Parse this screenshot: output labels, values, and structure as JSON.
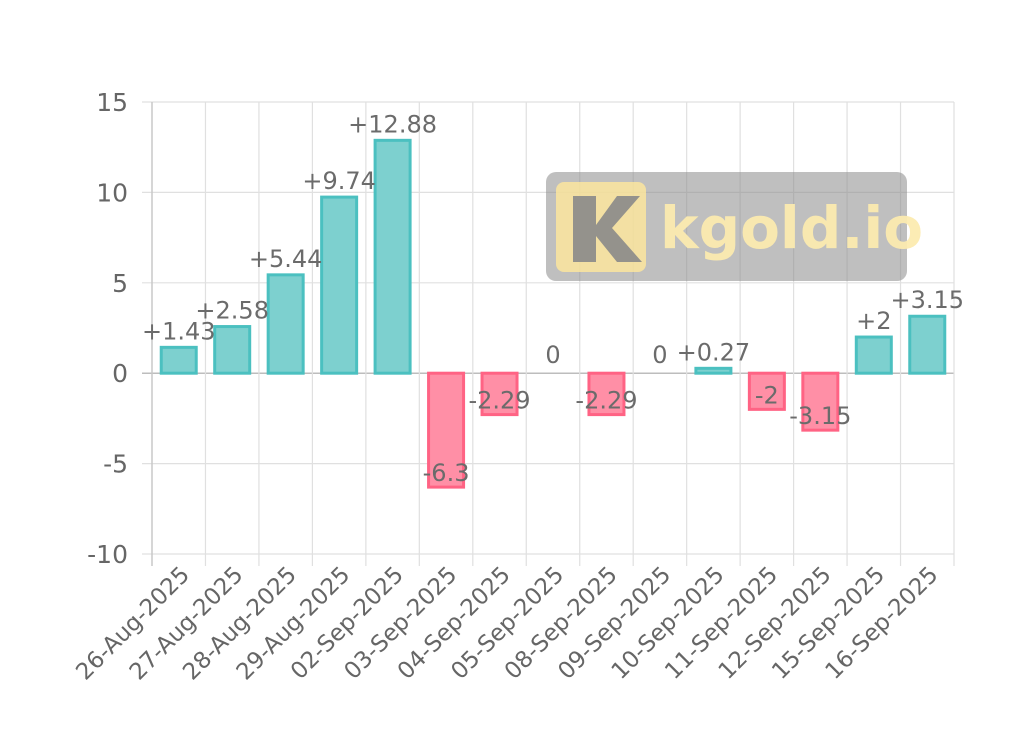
{
  "watermark": {
    "text": "kgold.io",
    "logo_letter": "K",
    "colors": {
      "box": "#8a8a8a",
      "logo": "#fbe59e"
    }
  },
  "colors": {
    "positive_fill": "#7dd0cf",
    "positive_stroke": "#4bc0c0",
    "negative_fill": "#ff8fa6",
    "negative_stroke": "#ff6384"
  },
  "chart_data": {
    "type": "bar",
    "title": "",
    "xlabel": "",
    "ylabel": "",
    "ylim": [
      -10,
      15
    ],
    "yticks": [
      -10,
      -5,
      0,
      5,
      10,
      15
    ],
    "grid": true,
    "legend": "none",
    "categories": [
      "26-Aug-2025",
      "27-Aug-2025",
      "28-Aug-2025",
      "29-Aug-2025",
      "02-Sep-2025",
      "03-Sep-2025",
      "04-Sep-2025",
      "05-Sep-2025",
      "08-Sep-2025",
      "09-Sep-2025",
      "10-Sep-2025",
      "11-Sep-2025",
      "12-Sep-2025",
      "15-Sep-2025",
      "16-Sep-2025"
    ],
    "values": [
      1.43,
      2.58,
      5.44,
      9.74,
      12.88,
      -6.3,
      -2.29,
      0,
      -2.29,
      0,
      0.27,
      -2,
      -3.15,
      2,
      3.15
    ],
    "data_labels": [
      "+1.43",
      "+2.58",
      "+5.44",
      "+9.74",
      "+12.88",
      "-6.3",
      "-2.29",
      "0",
      "-2.29",
      "0",
      "+0.27",
      "-2",
      "-3.15",
      "+2",
      "+3.15"
    ]
  }
}
